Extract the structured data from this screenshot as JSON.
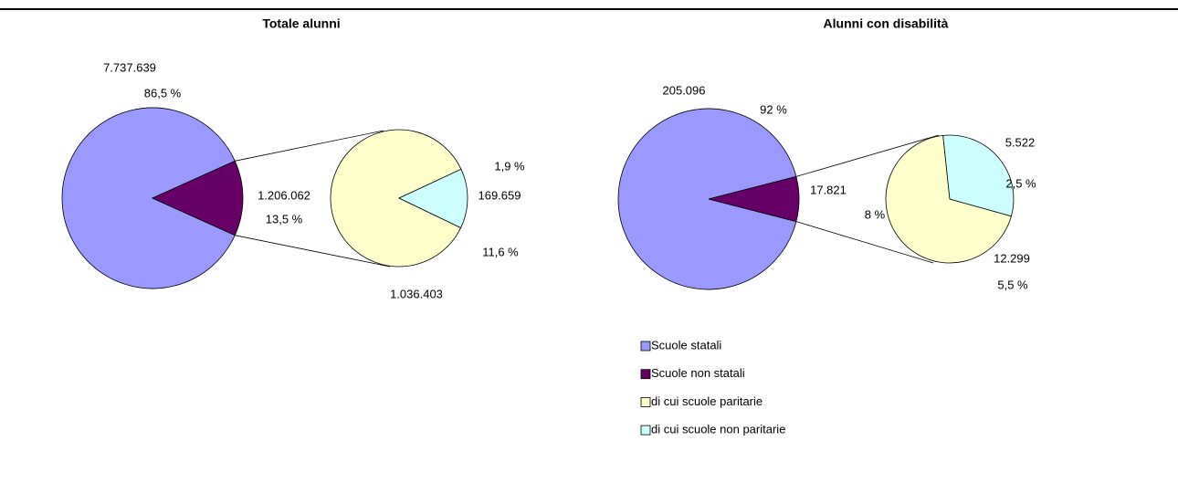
{
  "chart_data": [
    {
      "type": "pie-of-pie",
      "title": "Totale alunni",
      "values": [
        7737639,
        1206062,
        1036403,
        169659
      ],
      "value_labels": [
        "7.737.639",
        "1.206.062",
        "1.036.403",
        "169.659"
      ],
      "percents": [
        86.5,
        13.5,
        11.6,
        1.9
      ],
      "percent_labels": [
        "86,5 %",
        "13,5 %",
        "11,6 %",
        "1,9 %"
      ]
    },
    {
      "type": "pie-of-pie",
      "title": "Alunni con disabilità",
      "values": [
        205096,
        17821,
        12299,
        5522
      ],
      "value_labels": [
        "205.096",
        "17.821",
        "12.299",
        "5.522"
      ],
      "percents": [
        92,
        8,
        5.5,
        2.5
      ],
      "percent_labels": [
        "92 %",
        "8 %",
        "5,5 %",
        "2,5 %"
      ]
    }
  ],
  "legend": {
    "categories": [
      "Scuole statali",
      "Scuole non statali",
      "di cui scuole paritarie",
      "di cui scuole non paritarie"
    ],
    "colors": [
      "#9999ff",
      "#660066",
      "#ffffcc",
      "#ccffff"
    ]
  }
}
